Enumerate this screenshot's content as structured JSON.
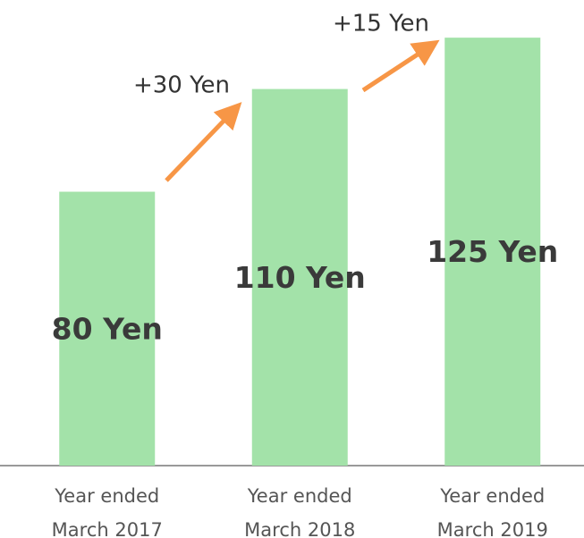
{
  "chart_data": {
    "type": "bar",
    "categories": [
      "Year ended March 2017",
      "Year ended March 2018",
      "Year ended March 2019"
    ],
    "values": [
      80,
      110,
      125
    ],
    "value_labels": [
      "80 Yen",
      "110 Yen",
      "125 Yen"
    ],
    "color": "#a3e2a9",
    "ylim": [
      0,
      136
    ],
    "annotations": [
      "+30 Yen",
      "+15 Yen"
    ]
  }
}
